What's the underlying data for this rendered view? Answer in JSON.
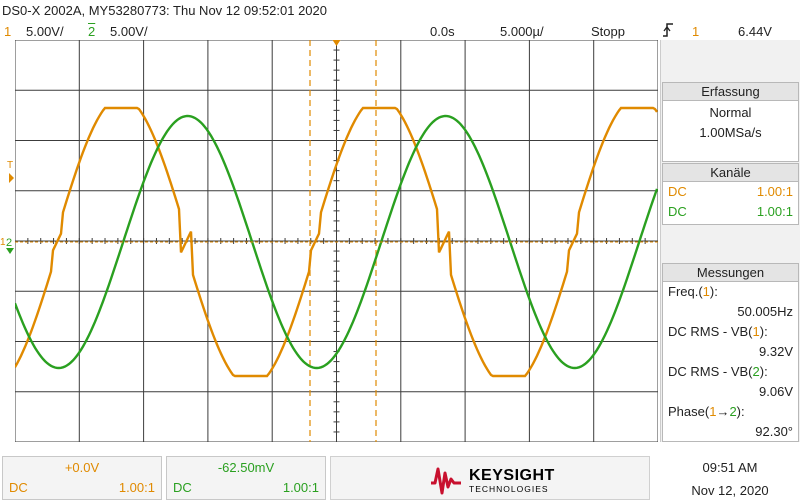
{
  "header": {
    "title": "DS0-X 2002A, MY53280773: Thu Nov 12 09:52:01 2020"
  },
  "status": {
    "ch1_num": "1",
    "ch1_scale": "5.00V/",
    "ch2_num": "2",
    "ch2_scale": "5.00V/",
    "delay": "0.0s",
    "timebase": "5.000µ/",
    "run_state": "Stopp",
    "trigger_edge_icon": "rising-edge-icon",
    "trigger_channel": "1",
    "trigger_level": "6.44V"
  },
  "markers": {
    "trigger_level_label": "T",
    "ch1_ground_label": "1",
    "ch2_ground_label": "2"
  },
  "brand": {
    "name": "KEYSIGHT",
    "sub": "TECHNOLOGIES"
  },
  "panel": {
    "acquisition": {
      "title": "Erfassung",
      "mode": "Normal",
      "rate": "1.00MSa/s"
    },
    "channels": {
      "title": "Kanäle",
      "rows": [
        {
          "coupling": "DC",
          "probe": "1.00:1"
        },
        {
          "coupling": "DC",
          "probe": "1.00:1"
        }
      ]
    },
    "measurements": {
      "title": "Messungen",
      "freq_label_a": "Freq.(",
      "freq_label_b": "1",
      "freq_label_c": "):",
      "freq_value": "50.005Hz",
      "rms1_label_a": "DC RMS - VB(",
      "rms1_label_b": "1",
      "rms1_label_c": "):",
      "rms1_value": "9.32V",
      "rms2_label_a": "DC RMS - VB(",
      "rms2_label_b": "2",
      "rms2_label_c": "):",
      "rms2_value": "9.06V",
      "phase_label_a": "Phase(",
      "phase_label_b": "1",
      "phase_label_arrow": "→",
      "phase_label_c": "2",
      "phase_label_d": "):",
      "phase_value": "92.30°"
    }
  },
  "bottom": {
    "ch1_offset": "+0.0V",
    "ch1_coupling": "DC",
    "ch1_probe": "1.00:1",
    "ch2_offset": "-62.50mV",
    "ch2_coupling": "DC",
    "ch2_probe": "1.00:1",
    "time": "09:51 AM",
    "date": "Nov 12, 2020"
  },
  "colors": {
    "ch1": "#e08a00",
    "ch2": "#2aa020",
    "brand": "#c8102e",
    "grid": "#3c3c3c"
  },
  "chart_data": {
    "type": "line",
    "title": "",
    "xlabel": "",
    "ylabel": "",
    "volts_per_div": 5.0,
    "frequency_hz": 50.005,
    "time_reference_s": 0.0,
    "grid": true,
    "series": [
      {
        "name": "1",
        "color": "#e08a00",
        "rms_v": 9.32,
        "shape": "distorted-sine"
      },
      {
        "name": "2",
        "color": "#2aa020",
        "rms_v": 9.06,
        "phase_lag_deg": 92.3
      }
    ]
  }
}
